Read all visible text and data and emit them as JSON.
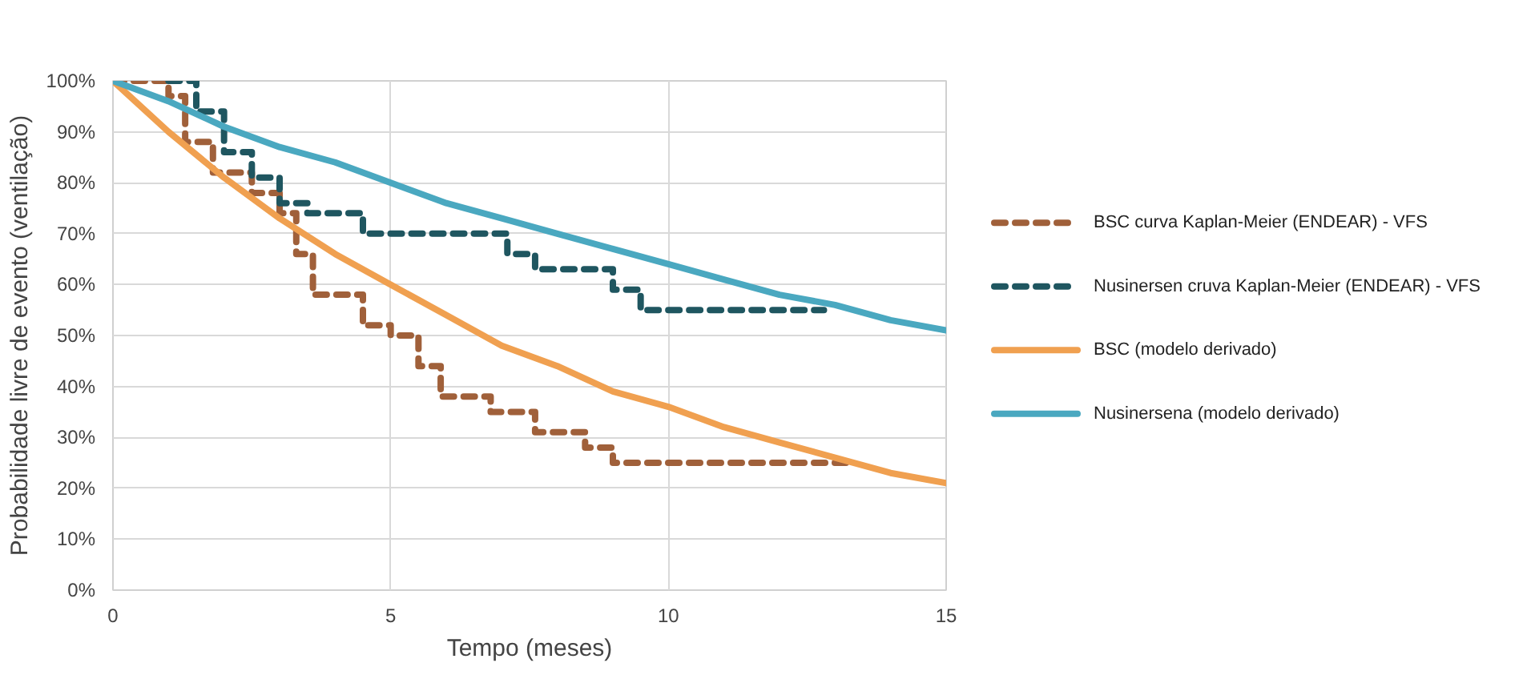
{
  "chart_data": {
    "type": "line",
    "xlabel": "Tempo (meses)",
    "ylabel": "Probabilidade livre de evento (ventilação)",
    "xlim": [
      0,
      15
    ],
    "xticks": [
      0,
      5,
      10,
      15
    ],
    "ylim": [
      0,
      100
    ],
    "yticks": [
      {
        "value": 0,
        "label": "0%"
      },
      {
        "value": 10,
        "label": "10%"
      },
      {
        "value": 20,
        "label": "20%"
      },
      {
        "value": 30,
        "label": "30%"
      },
      {
        "value": 40,
        "label": "40%"
      },
      {
        "value": 50,
        "label": "50%"
      },
      {
        "value": 60,
        "label": "60%"
      },
      {
        "value": 70,
        "label": "70%"
      },
      {
        "value": 80,
        "label": "80%"
      },
      {
        "value": 90,
        "label": "90%"
      },
      {
        "value": 100,
        "label": "100%"
      }
    ],
    "grid": true,
    "legend": "right",
    "series": [
      {
        "name": "BSC curva Kaplan-Meier (ENDEAR) - VFS",
        "type": "step",
        "line_style": "dashed",
        "color": "#a0603a",
        "x": [
          0,
          1.0,
          1.3,
          1.8,
          2.5,
          3.0,
          3.3,
          3.6,
          4.5,
          5.0,
          5.5,
          5.9,
          6.8,
          7.6,
          8.5,
          9.0,
          13.3
        ],
        "values": [
          100,
          97,
          88,
          82,
          78,
          74,
          66,
          58,
          52,
          50,
          44,
          38,
          35,
          31,
          28,
          25,
          25
        ]
      },
      {
        "name": "Nusinersen cruva Kaplan-Meier (ENDEAR) - VFS",
        "type": "step",
        "line_style": "dashed",
        "color": "#1f5660",
        "x": [
          1.0,
          1.5,
          2.0,
          2.5,
          3.0,
          3.5,
          4.5,
          7.1,
          7.6,
          9.0,
          9.5,
          12.8
        ],
        "values": [
          100,
          94,
          86,
          81,
          76,
          74,
          70,
          66,
          63,
          59,
          55,
          55
        ]
      },
      {
        "name": "BSC (modelo derivado)",
        "line_style": "solid",
        "color": "#f0a050",
        "x": [
          0,
          1,
          2,
          3,
          4,
          5,
          6,
          7,
          8,
          9,
          10,
          11,
          12,
          13,
          14,
          15
        ],
        "values": [
          100,
          90,
          81,
          73,
          66,
          60,
          54,
          48,
          44,
          39,
          36,
          32,
          29,
          26,
          23,
          21
        ]
      },
      {
        "name": "Nusinersena (modelo derivado)",
        "line_style": "solid",
        "color": "#4aa8c0",
        "x": [
          0,
          1,
          2,
          3,
          4,
          5,
          6,
          7,
          8,
          9,
          10,
          11,
          12,
          13,
          14,
          15
        ],
        "values": [
          100,
          96,
          91,
          87,
          84,
          80,
          76,
          73,
          70,
          67,
          64,
          61,
          58,
          56,
          53,
          51
        ]
      }
    ]
  }
}
